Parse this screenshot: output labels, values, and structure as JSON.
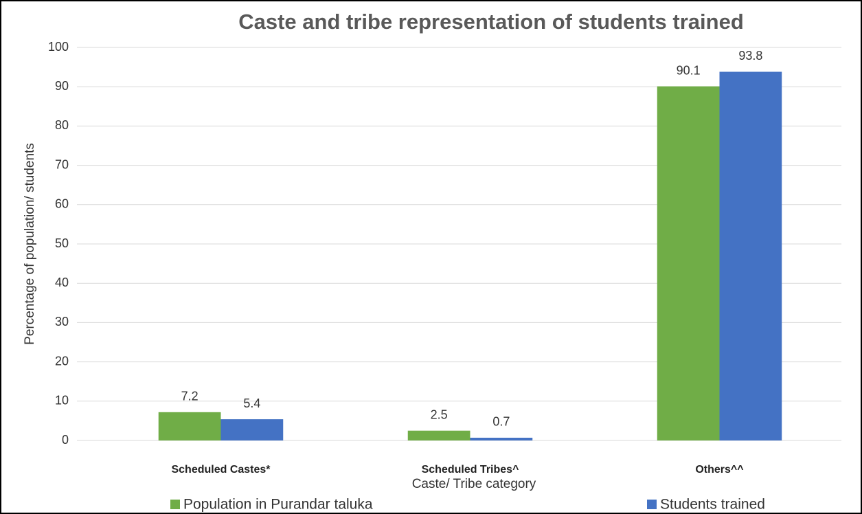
{
  "chart_data": {
    "type": "bar",
    "title": "Caste and tribe representation of students trained",
    "x_label": "Caste/ Tribe category",
    "y_label": "Percentage of population/ students",
    "categories": [
      "Scheduled Castes*",
      "Scheduled Tribes^",
      "Others^^"
    ],
    "series": [
      {
        "name": "Population in Purandar taluka",
        "color": "#70ad47",
        "values": [
          7.2,
          2.5,
          90.1
        ]
      },
      {
        "name": "Students trained",
        "color": "#4472c4",
        "values": [
          5.4,
          0.7,
          93.8
        ]
      }
    ],
    "ylim": [
      0,
      100
    ],
    "yticks": [
      0,
      10,
      20,
      30,
      40,
      50,
      60,
      70,
      80,
      90,
      100
    ],
    "grid": true,
    "legend": "bottom"
  }
}
